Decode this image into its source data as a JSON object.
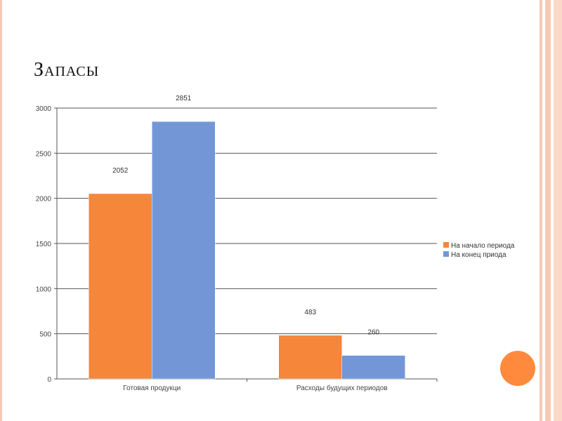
{
  "slide": {
    "title": "Запасы",
    "accent_color": "#ff8a3d",
    "stripe_color": "#f7c9b4"
  },
  "chart_data": {
    "type": "bar",
    "title": "",
    "xlabel": "",
    "ylabel": "",
    "categories": [
      "Готовая продукци",
      "Расходы будущих периодов"
    ],
    "series": [
      {
        "name": "На начало периода",
        "color": "#f5863a",
        "values": [
          2052,
          483
        ],
        "labels": [
          "2052",
          "483"
        ]
      },
      {
        "name": "На конец приода",
        "color": "#7397d6",
        "values": [
          2851,
          260
        ],
        "labels": [
          "2851",
          "260"
        ]
      }
    ],
    "ylim": [
      0,
      3000
    ],
    "yticks": [
      0,
      500,
      1000,
      1500,
      2000,
      2500,
      3000
    ],
    "grid": true,
    "legend": "right"
  }
}
